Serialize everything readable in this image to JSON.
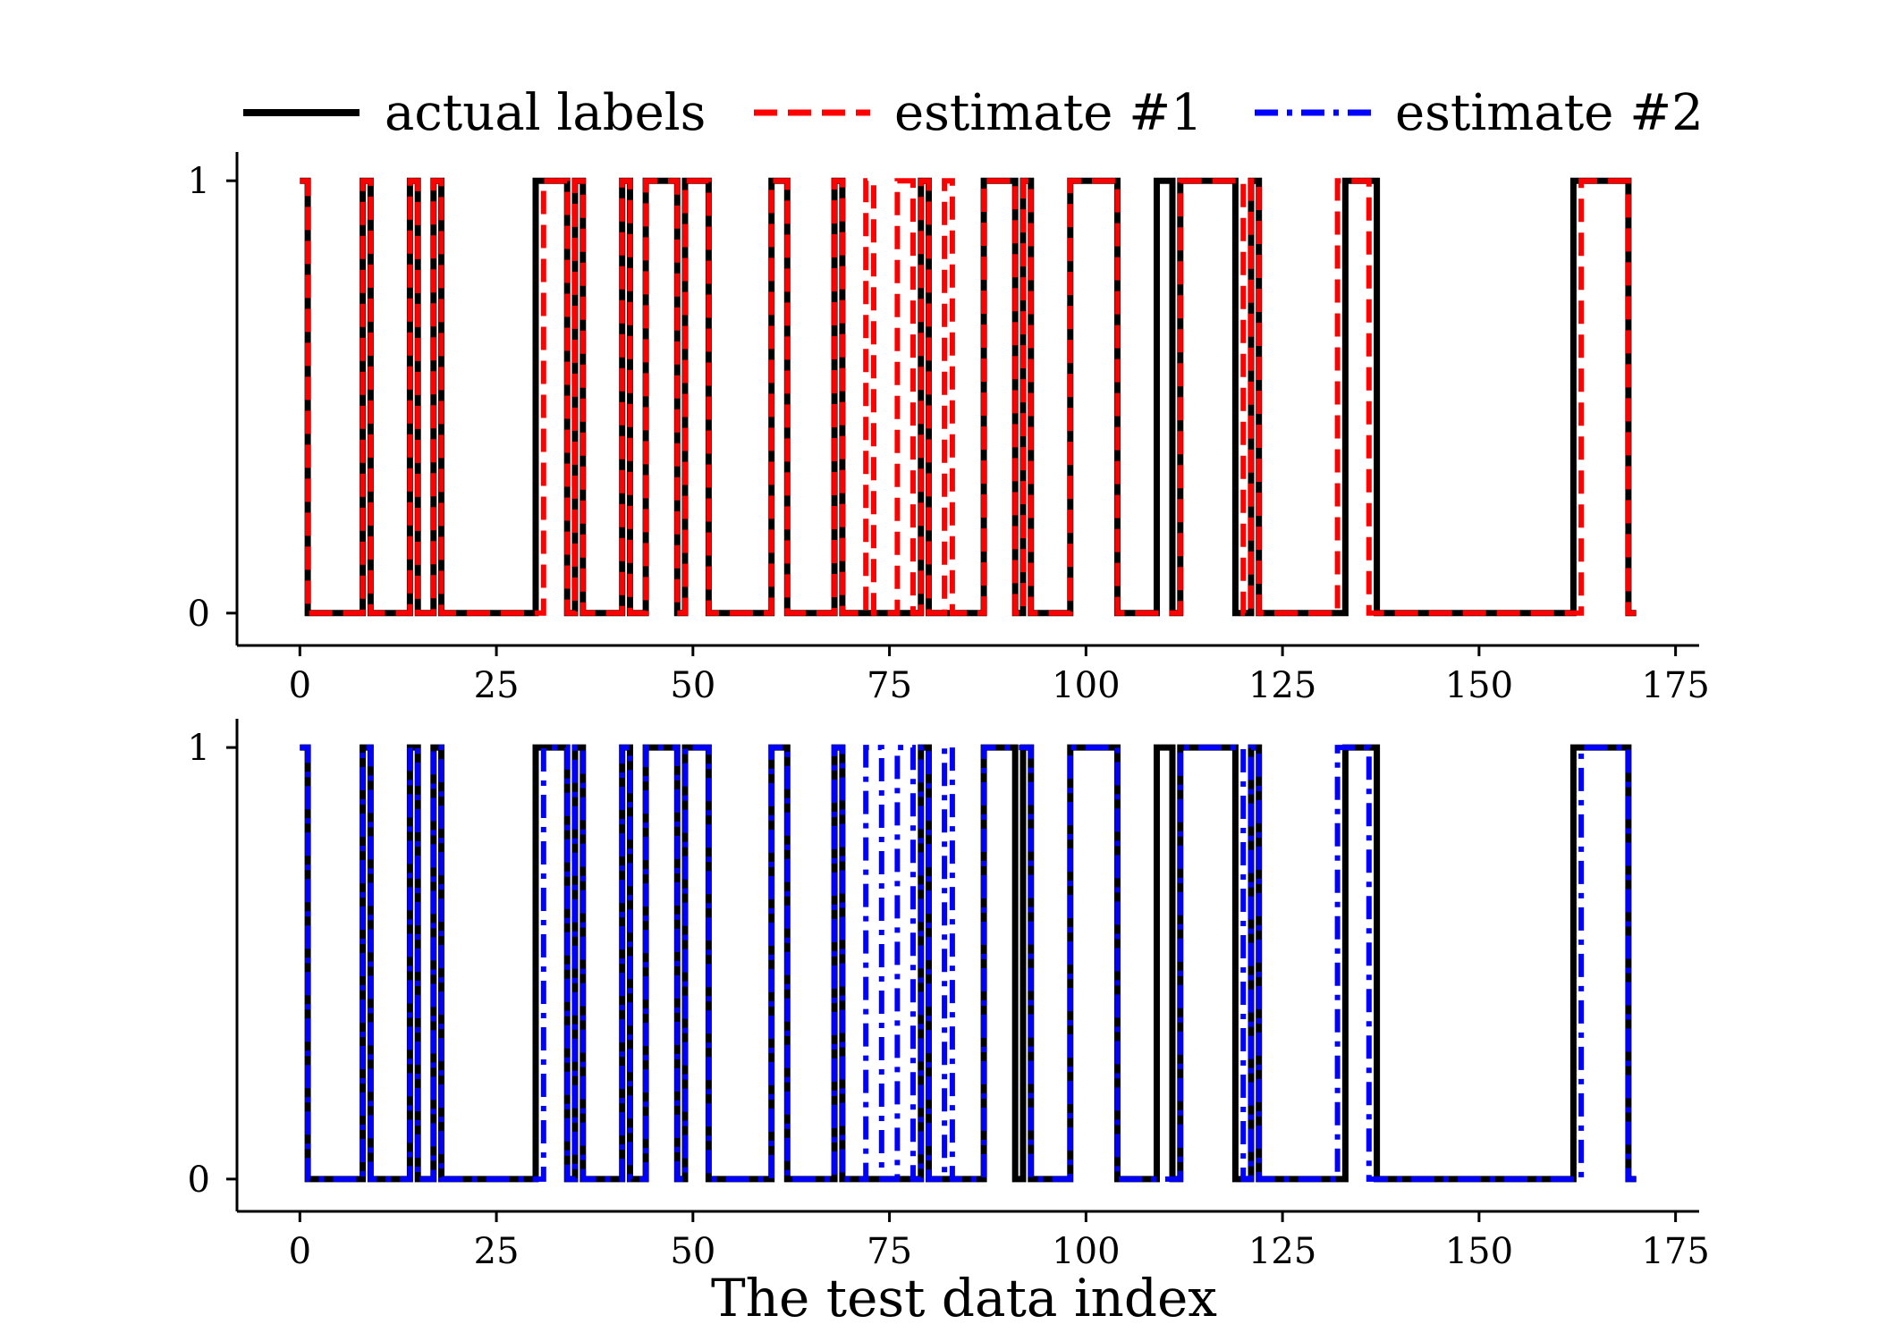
{
  "chart_data": {
    "type": "line",
    "step": true,
    "xlabel": "The test data index",
    "legend": {
      "placement": "top-center",
      "entries": [
        {
          "label": "actual labels",
          "color": "#000000",
          "style": "solid"
        },
        {
          "label": "estimate #1",
          "color": "#ff0000",
          "style": "dashed"
        },
        {
          "label": "estimate #2",
          "color": "#0000ff",
          "style": "dashdot"
        }
      ]
    },
    "xlim": [
      -8,
      178
    ],
    "ylim": [
      -0.05,
      1.05
    ],
    "xticks": [
      0,
      25,
      50,
      75,
      100,
      125,
      150,
      175
    ],
    "yticks": [
      0,
      1
    ],
    "panels": [
      {
        "ylabel": "",
        "series": [
          {
            "name": "actual labels",
            "color": "#000000",
            "style": "solid",
            "ones": [
              0,
              8,
              14,
              17,
              30,
              31,
              32,
              33,
              35,
              41,
              44,
              45,
              46,
              47,
              49,
              50,
              51,
              60,
              61,
              68,
              79,
              87,
              88,
              89,
              90,
              92,
              98,
              99,
              100,
              101,
              102,
              103,
              109,
              110,
              112,
              113,
              114,
              115,
              116,
              117,
              118,
              121,
              133,
              134,
              135,
              136,
              162,
              163,
              164,
              165,
              166,
              167,
              168
            ]
          },
          {
            "name": "estimate #1",
            "color": "#ff0000",
            "style": "dashed",
            "ones": [
              0,
              8,
              14,
              17,
              31,
              32,
              33,
              35,
              41,
              44,
              45,
              46,
              47,
              49,
              50,
              51,
              60,
              61,
              68,
              72,
              76,
              77,
              79,
              82,
              87,
              88,
              89,
              90,
              92,
              98,
              99,
              100,
              101,
              102,
              103,
              112,
              113,
              114,
              115,
              116,
              117,
              118,
              119,
              121,
              132,
              133,
              134,
              135,
              163,
              164,
              165,
              166,
              167,
              168
            ]
          }
        ]
      },
      {
        "ylabel": "",
        "series": [
          {
            "name": "actual labels",
            "color": "#000000",
            "style": "solid",
            "ones": [
              0,
              8,
              14,
              17,
              30,
              31,
              32,
              33,
              35,
              41,
              44,
              45,
              46,
              47,
              49,
              50,
              51,
              60,
              61,
              68,
              79,
              87,
              88,
              89,
              90,
              92,
              98,
              99,
              100,
              101,
              102,
              103,
              109,
              110,
              112,
              113,
              114,
              115,
              116,
              117,
              118,
              121,
              133,
              134,
              135,
              136,
              162,
              163,
              164,
              165,
              166,
              167,
              168
            ]
          },
          {
            "name": "estimate #2",
            "color": "#0000ff",
            "style": "dashdot",
            "ones": [
              0,
              8,
              14,
              17,
              31,
              32,
              33,
              35,
              41,
              44,
              45,
              46,
              47,
              49,
              50,
              51,
              60,
              61,
              68,
              72,
              73,
              76,
              77,
              79,
              82,
              87,
              88,
              89,
              90,
              91,
              92,
              98,
              99,
              100,
              101,
              102,
              103,
              112,
              113,
              114,
              115,
              116,
              117,
              118,
              119,
              121,
              132,
              133,
              134,
              135,
              163,
              164,
              165,
              166,
              167,
              168
            ]
          }
        ]
      }
    ],
    "n_points": 170
  }
}
